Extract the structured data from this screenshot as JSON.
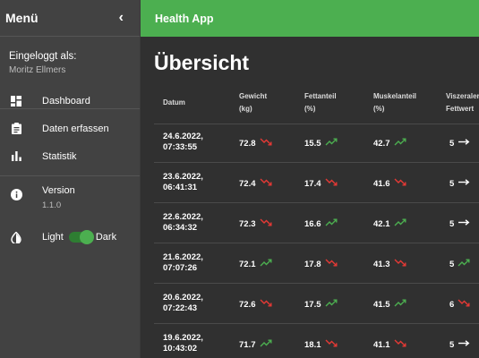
{
  "sidebar": {
    "title": "Menü",
    "collapse_icon": "‹",
    "login_label": "Eingeloggt als:",
    "user_name": "Moritz Ellmers",
    "items": [
      {
        "label": "Dashboard",
        "icon": "dashboard-icon"
      },
      {
        "label": "Daten erfassen",
        "icon": "clipboard-icon"
      },
      {
        "label": "Statistik",
        "icon": "bar-chart-icon"
      }
    ],
    "version_label": "Version",
    "version_number": "1.1.0",
    "theme_light": "Light",
    "theme_dark": "Dark",
    "theme_toggle_on": true
  },
  "header": {
    "app_title": "Health App"
  },
  "main": {
    "title": "Übersicht",
    "columns": [
      [
        "Datum"
      ],
      [
        "Gewicht",
        "(kg)"
      ],
      [
        "Fettanteil",
        "(%)"
      ],
      [
        "Muskelanteil",
        "(%)"
      ],
      [
        "Viszeraler",
        "Fettwert"
      ]
    ],
    "rows": [
      {
        "date": "24.6.2022,",
        "time": "07:33:55",
        "weight": "72.8",
        "weight_trend": "down",
        "fat": "15.5",
        "fat_trend": "up",
        "muscle": "42.7",
        "muscle_trend": "up",
        "visceral": "5",
        "visceral_trend": "flat"
      },
      {
        "date": "23.6.2022,",
        "time": "06:41:31",
        "weight": "72.4",
        "weight_trend": "down",
        "fat": "17.4",
        "fat_trend": "down",
        "muscle": "41.6",
        "muscle_trend": "down",
        "visceral": "5",
        "visceral_trend": "flat"
      },
      {
        "date": "22.6.2022,",
        "time": "06:34:32",
        "weight": "72.3",
        "weight_trend": "down",
        "fat": "16.6",
        "fat_trend": "up",
        "muscle": "42.1",
        "muscle_trend": "up",
        "visceral": "5",
        "visceral_trend": "flat"
      },
      {
        "date": "21.6.2022,",
        "time": "07:07:26",
        "weight": "72.1",
        "weight_trend": "up",
        "fat": "17.8",
        "fat_trend": "down",
        "muscle": "41.3",
        "muscle_trend": "down",
        "visceral": "5",
        "visceral_trend": "up"
      },
      {
        "date": "20.6.2022,",
        "time": "07:22:43",
        "weight": "72.6",
        "weight_trend": "down",
        "fat": "17.5",
        "fat_trend": "up",
        "muscle": "41.5",
        "muscle_trend": "up",
        "visceral": "6",
        "visceral_trend": "down"
      },
      {
        "date": "19.6.2022,",
        "time": "10:43:02",
        "weight": "71.7",
        "weight_trend": "up",
        "fat": "18.1",
        "fat_trend": "down",
        "muscle": "41.1",
        "muscle_trend": "down",
        "visceral": "5",
        "visceral_trend": "flat"
      }
    ]
  },
  "colors": {
    "accent": "#4caf50",
    "trend_up": "#4caf50",
    "trend_down": "#e53935",
    "trend_flat": "#ffffff",
    "sidebar_bg": "#424242",
    "content_bg": "#303030"
  }
}
